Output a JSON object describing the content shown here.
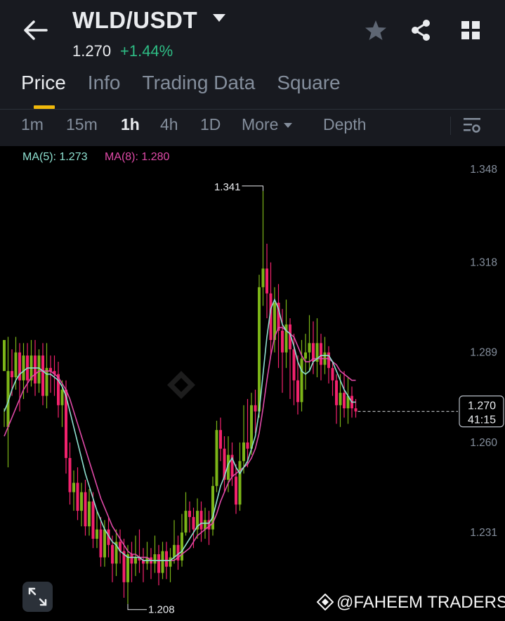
{
  "header": {
    "pair": "WLD/USDT",
    "last_price": "1.270",
    "change": "+1.44%",
    "icons": [
      "back-arrow-icon",
      "star-icon",
      "share-icon",
      "grid-icon"
    ]
  },
  "tabs": [
    {
      "label": "Price",
      "active": true
    },
    {
      "label": "Info",
      "active": false
    },
    {
      "label": "Trading Data",
      "active": false
    },
    {
      "label": "Square",
      "active": false
    }
  ],
  "intervals": [
    {
      "label": "1m",
      "active": false
    },
    {
      "label": "15m",
      "active": false
    },
    {
      "label": "1h",
      "active": true
    },
    {
      "label": "4h",
      "active": false
    },
    {
      "label": "1D",
      "active": false
    },
    {
      "label": "More",
      "active": false
    },
    {
      "label": "Depth",
      "active": false
    }
  ],
  "ma": {
    "ma5": "MA(5): 1.273",
    "ma8": "MA(8): 1.280"
  },
  "colors": {
    "up": "#7cb518",
    "down": "#f2226d",
    "ma5": "#8ee0d0",
    "ma8": "#e04aa8",
    "bg": "#000000",
    "header": "#181a20"
  },
  "chart_data": {
    "type": "candlestick",
    "y_axis_labels": [
      "1.348",
      "1.318",
      "1.289",
      "1.260",
      "1.231"
    ],
    "ylim": [
      1.205,
      1.35
    ],
    "high_marker": "1.341",
    "low_marker": "1.208",
    "current_price": "1.270",
    "countdown": "41:15",
    "grid": false,
    "candles": [
      [
        1.283,
        1.293,
        1.271,
        1.265
      ],
      [
        1.265,
        1.283,
        1.294,
        1.252
      ],
      [
        1.283,
        1.281,
        1.29,
        1.275
      ],
      [
        1.281,
        1.289,
        1.294,
        1.277
      ],
      [
        1.289,
        1.28,
        1.292,
        1.27
      ],
      [
        1.28,
        1.288,
        1.292,
        1.274
      ],
      [
        1.288,
        1.28,
        1.292,
        1.276
      ],
      [
        1.28,
        1.288,
        1.293,
        1.278
      ],
      [
        1.288,
        1.279,
        1.293,
        1.275
      ],
      [
        1.279,
        1.288,
        1.29,
        1.276
      ],
      [
        1.288,
        1.275,
        1.292,
        1.272
      ],
      [
        1.275,
        1.284,
        1.292,
        1.271
      ],
      [
        1.284,
        1.283,
        1.288,
        1.276
      ],
      [
        1.283,
        1.282,
        1.288,
        1.275
      ],
      [
        1.282,
        1.272,
        1.286,
        1.268
      ],
      [
        1.272,
        1.277,
        1.28,
        1.265
      ],
      [
        1.277,
        1.255,
        1.28,
        1.25
      ],
      [
        1.255,
        1.244,
        1.26,
        1.24
      ],
      [
        1.244,
        1.247,
        1.251,
        1.238
      ],
      [
        1.247,
        1.238,
        1.252,
        1.235
      ],
      [
        1.238,
        1.244,
        1.247,
        1.233
      ],
      [
        1.244,
        1.233,
        1.248,
        1.23
      ],
      [
        1.233,
        1.241,
        1.245,
        1.23
      ],
      [
        1.241,
        1.229,
        1.244,
        1.226
      ],
      [
        1.229,
        1.232,
        1.238,
        1.226
      ],
      [
        1.232,
        1.223,
        1.236,
        1.22
      ],
      [
        1.223,
        1.232,
        1.235,
        1.22
      ],
      [
        1.232,
        1.227,
        1.236,
        1.223
      ],
      [
        1.227,
        1.221,
        1.23,
        1.215
      ],
      [
        1.221,
        1.228,
        1.232,
        1.217
      ],
      [
        1.228,
        1.225,
        1.232,
        1.221
      ],
      [
        1.225,
        1.215,
        1.229,
        1.21
      ],
      [
        1.215,
        1.224,
        1.227,
        1.208
      ],
      [
        1.224,
        1.221,
        1.228,
        1.215
      ],
      [
        1.221,
        1.223,
        1.23,
        1.217
      ],
      [
        1.223,
        1.222,
        1.232,
        1.218
      ],
      [
        1.222,
        1.221,
        1.226,
        1.215
      ],
      [
        1.221,
        1.223,
        1.228,
        1.219
      ],
      [
        1.223,
        1.221,
        1.226,
        1.216
      ],
      [
        1.221,
        1.224,
        1.23,
        1.218
      ],
      [
        1.224,
        1.218,
        1.227,
        1.214
      ],
      [
        1.218,
        1.225,
        1.228,
        1.216
      ],
      [
        1.225,
        1.22,
        1.228,
        1.216
      ],
      [
        1.22,
        1.223,
        1.226,
        1.215
      ],
      [
        1.223,
        1.227,
        1.235,
        1.221
      ],
      [
        1.227,
        1.222,
        1.23,
        1.219
      ],
      [
        1.222,
        1.231,
        1.237,
        1.22
      ],
      [
        1.231,
        1.238,
        1.244,
        1.23
      ],
      [
        1.238,
        1.236,
        1.241,
        1.231
      ],
      [
        1.236,
        1.232,
        1.239,
        1.226
      ],
      [
        1.232,
        1.238,
        1.242,
        1.229
      ],
      [
        1.238,
        1.232,
        1.241,
        1.228
      ],
      [
        1.232,
        1.235,
        1.239,
        1.229
      ],
      [
        1.235,
        1.232,
        1.238,
        1.227
      ],
      [
        1.232,
        1.246,
        1.249,
        1.23
      ],
      [
        1.246,
        1.264,
        1.267,
        1.244
      ],
      [
        1.264,
        1.258,
        1.268,
        1.254
      ],
      [
        1.258,
        1.248,
        1.262,
        1.244
      ],
      [
        1.248,
        1.256,
        1.262,
        1.244
      ],
      [
        1.256,
        1.249,
        1.26,
        1.246
      ],
      [
        1.249,
        1.24,
        1.253,
        1.237
      ],
      [
        1.24,
        1.254,
        1.26,
        1.238
      ],
      [
        1.254,
        1.26,
        1.272,
        1.25
      ],
      [
        1.26,
        1.258,
        1.274,
        1.252
      ],
      [
        1.258,
        1.272,
        1.276,
        1.256
      ],
      [
        1.272,
        1.27,
        1.277,
        1.263
      ],
      [
        1.27,
        1.31,
        1.314,
        1.268
      ],
      [
        1.31,
        1.316,
        1.341,
        1.304
      ],
      [
        1.316,
        1.308,
        1.324,
        1.3
      ],
      [
        1.308,
        1.293,
        1.318,
        1.288
      ],
      [
        1.293,
        1.305,
        1.31,
        1.289
      ],
      [
        1.305,
        1.296,
        1.311,
        1.284
      ],
      [
        1.296,
        1.289,
        1.303,
        1.276
      ],
      [
        1.289,
        1.298,
        1.306,
        1.284
      ],
      [
        1.298,
        1.29,
        1.3,
        1.274
      ],
      [
        1.29,
        1.28,
        1.295,
        1.272
      ],
      [
        1.28,
        1.273,
        1.288,
        1.269
      ],
      [
        1.273,
        1.287,
        1.293,
        1.27
      ],
      [
        1.287,
        1.289,
        1.295,
        1.277
      ],
      [
        1.289,
        1.292,
        1.301,
        1.283
      ],
      [
        1.292,
        1.286,
        1.299,
        1.282
      ],
      [
        1.286,
        1.292,
        1.3,
        1.281
      ],
      [
        1.292,
        1.285,
        1.295,
        1.28
      ],
      [
        1.285,
        1.289,
        1.294,
        1.282
      ],
      [
        1.289,
        1.284,
        1.291,
        1.279
      ],
      [
        1.284,
        1.28,
        1.286,
        1.275
      ],
      [
        1.28,
        1.272,
        1.282,
        1.266
      ],
      [
        1.272,
        1.276,
        1.282,
        1.265
      ],
      [
        1.276,
        1.271,
        1.283,
        1.268
      ],
      [
        1.271,
        1.275,
        1.281,
        1.266
      ],
      [
        1.275,
        1.271,
        1.278,
        1.268
      ],
      [
        1.271,
        1.27,
        1.274,
        1.268
      ]
    ],
    "ma5_values": [
      1.27,
      1.273,
      1.277,
      1.28,
      1.282,
      1.283,
      1.284,
      1.284,
      1.284,
      1.284,
      1.283,
      1.282,
      1.282,
      1.281,
      1.28,
      1.278,
      1.275,
      1.27,
      1.265,
      1.26,
      1.255,
      1.25,
      1.246,
      1.242,
      1.238,
      1.235,
      1.232,
      1.23,
      1.228,
      1.227,
      1.225,
      1.224,
      1.223,
      1.223,
      1.223,
      1.223,
      1.222,
      1.222,
      1.222,
      1.222,
      1.222,
      1.222,
      1.222,
      1.222,
      1.223,
      1.224,
      1.225,
      1.227,
      1.229,
      1.231,
      1.233,
      1.234,
      1.234,
      1.234,
      1.236,
      1.241,
      1.246,
      1.249,
      1.253,
      1.255,
      1.252,
      1.25,
      1.252,
      1.254,
      1.258,
      1.262,
      1.27,
      1.282,
      1.294,
      1.303,
      1.306,
      1.303,
      1.298,
      1.296,
      1.295,
      1.291,
      1.286,
      1.283,
      1.282,
      1.283,
      1.286,
      1.287,
      1.288,
      1.288,
      1.288,
      1.286,
      1.283,
      1.28,
      1.277,
      1.275,
      1.273,
      1.273
    ],
    "ma8_values": [
      1.262,
      1.265,
      1.268,
      1.271,
      1.274,
      1.277,
      1.279,
      1.281,
      1.282,
      1.283,
      1.283,
      1.283,
      1.283,
      1.282,
      1.281,
      1.279,
      1.277,
      1.274,
      1.27,
      1.266,
      1.262,
      1.258,
      1.254,
      1.25,
      1.246,
      1.242,
      1.239,
      1.236,
      1.233,
      1.231,
      1.229,
      1.227,
      1.225,
      1.224,
      1.224,
      1.223,
      1.223,
      1.223,
      1.222,
      1.222,
      1.222,
      1.222,
      1.222,
      1.222,
      1.222,
      1.223,
      1.224,
      1.225,
      1.226,
      1.228,
      1.23,
      1.231,
      1.232,
      1.233,
      1.234,
      1.237,
      1.241,
      1.244,
      1.247,
      1.249,
      1.25,
      1.251,
      1.252,
      1.253,
      1.255,
      1.258,
      1.263,
      1.271,
      1.28,
      1.288,
      1.294,
      1.297,
      1.297,
      1.296,
      1.295,
      1.294,
      1.291,
      1.288,
      1.286,
      1.286,
      1.287,
      1.287,
      1.287,
      1.287,
      1.287,
      1.286,
      1.285,
      1.283,
      1.282,
      1.281,
      1.28,
      1.28
    ]
  },
  "watermark": "@FAHEEM TRADERS"
}
